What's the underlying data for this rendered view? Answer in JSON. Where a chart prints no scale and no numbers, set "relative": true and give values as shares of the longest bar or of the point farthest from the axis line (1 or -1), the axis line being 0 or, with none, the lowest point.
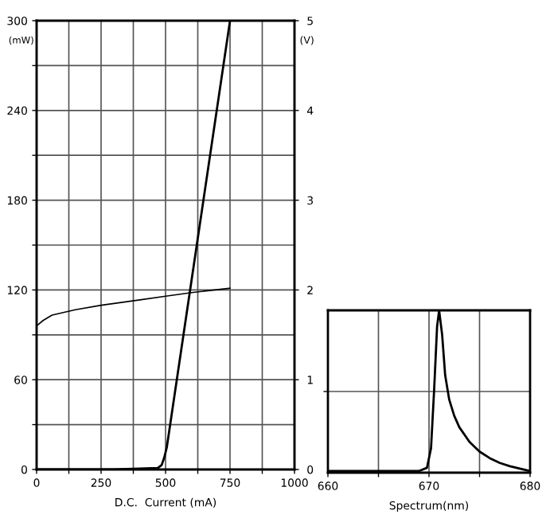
{
  "chart_data": [
    {
      "type": "line",
      "xlabel": "D.C.  Current (mA)",
      "ylabel": "(mW)",
      "y2label": "(V)",
      "xlim": [
        0,
        1000
      ],
      "xticks": [
        0,
        {
          "value": 125,
          "label": null
        },
        250,
        {
          "value": 375,
          "label": null
        },
        500,
        {
          "value": 625,
          "label": null
        },
        750,
        {
          "value": 875,
          "label": null
        },
        1000
      ],
      "ylim": [
        0,
        300
      ],
      "yticks": [
        0,
        {
          "value": 30,
          "label": null
        },
        60,
        {
          "value": 90,
          "label": null
        },
        120,
        {
          "value": 150,
          "label": null
        },
        180,
        {
          "value": 210,
          "label": null
        },
        240,
        {
          "value": 270,
          "label": null
        },
        300
      ],
      "y2lim": [
        0,
        5
      ],
      "y2ticks": [
        0,
        1,
        2,
        3,
        4,
        5
      ],
      "grid": true,
      "marker": "none",
      "line_style": "solid",
      "series": [
        {
          "color": "#000000",
          "x": [
            0,
            300,
            470,
            485,
            495,
            505,
            750
          ],
          "values": [
            0,
            0,
            1,
            3,
            8,
            15,
            300
          ]
        },
        {
          "color": "#000000",
          "axis": "y2",
          "x": [
            0,
            25,
            60,
            150,
            250,
            400,
            500,
            600,
            750
          ],
          "values": [
            1.6,
            1.66,
            1.72,
            1.78,
            1.83,
            1.89,
            1.93,
            1.97,
            2.02
          ]
        }
      ]
    },
    {
      "type": "line",
      "xlabel": "Spectrum(nm)",
      "relative": true,
      "xlim": [
        660,
        680
      ],
      "xticks": [
        660,
        {
          "value": 665,
          "label": null
        },
        670,
        {
          "value": 675,
          "label": null
        },
        680
      ],
      "grid": true,
      "marker": "none",
      "line_style": "solid",
      "series": [
        {
          "color": "#000000",
          "x": [
            660,
            665,
            669,
            669.8,
            670.2,
            670.5,
            670.8,
            671,
            671.3,
            671.6,
            672,
            672.5,
            673,
            674,
            675,
            676,
            677,
            678,
            680
          ],
          "values": [
            0.01,
            0.01,
            0.01,
            0.03,
            0.15,
            0.5,
            0.9,
            1.0,
            0.85,
            0.6,
            0.45,
            0.35,
            0.28,
            0.19,
            0.13,
            0.09,
            0.06,
            0.04,
            0.01
          ]
        }
      ]
    }
  ]
}
